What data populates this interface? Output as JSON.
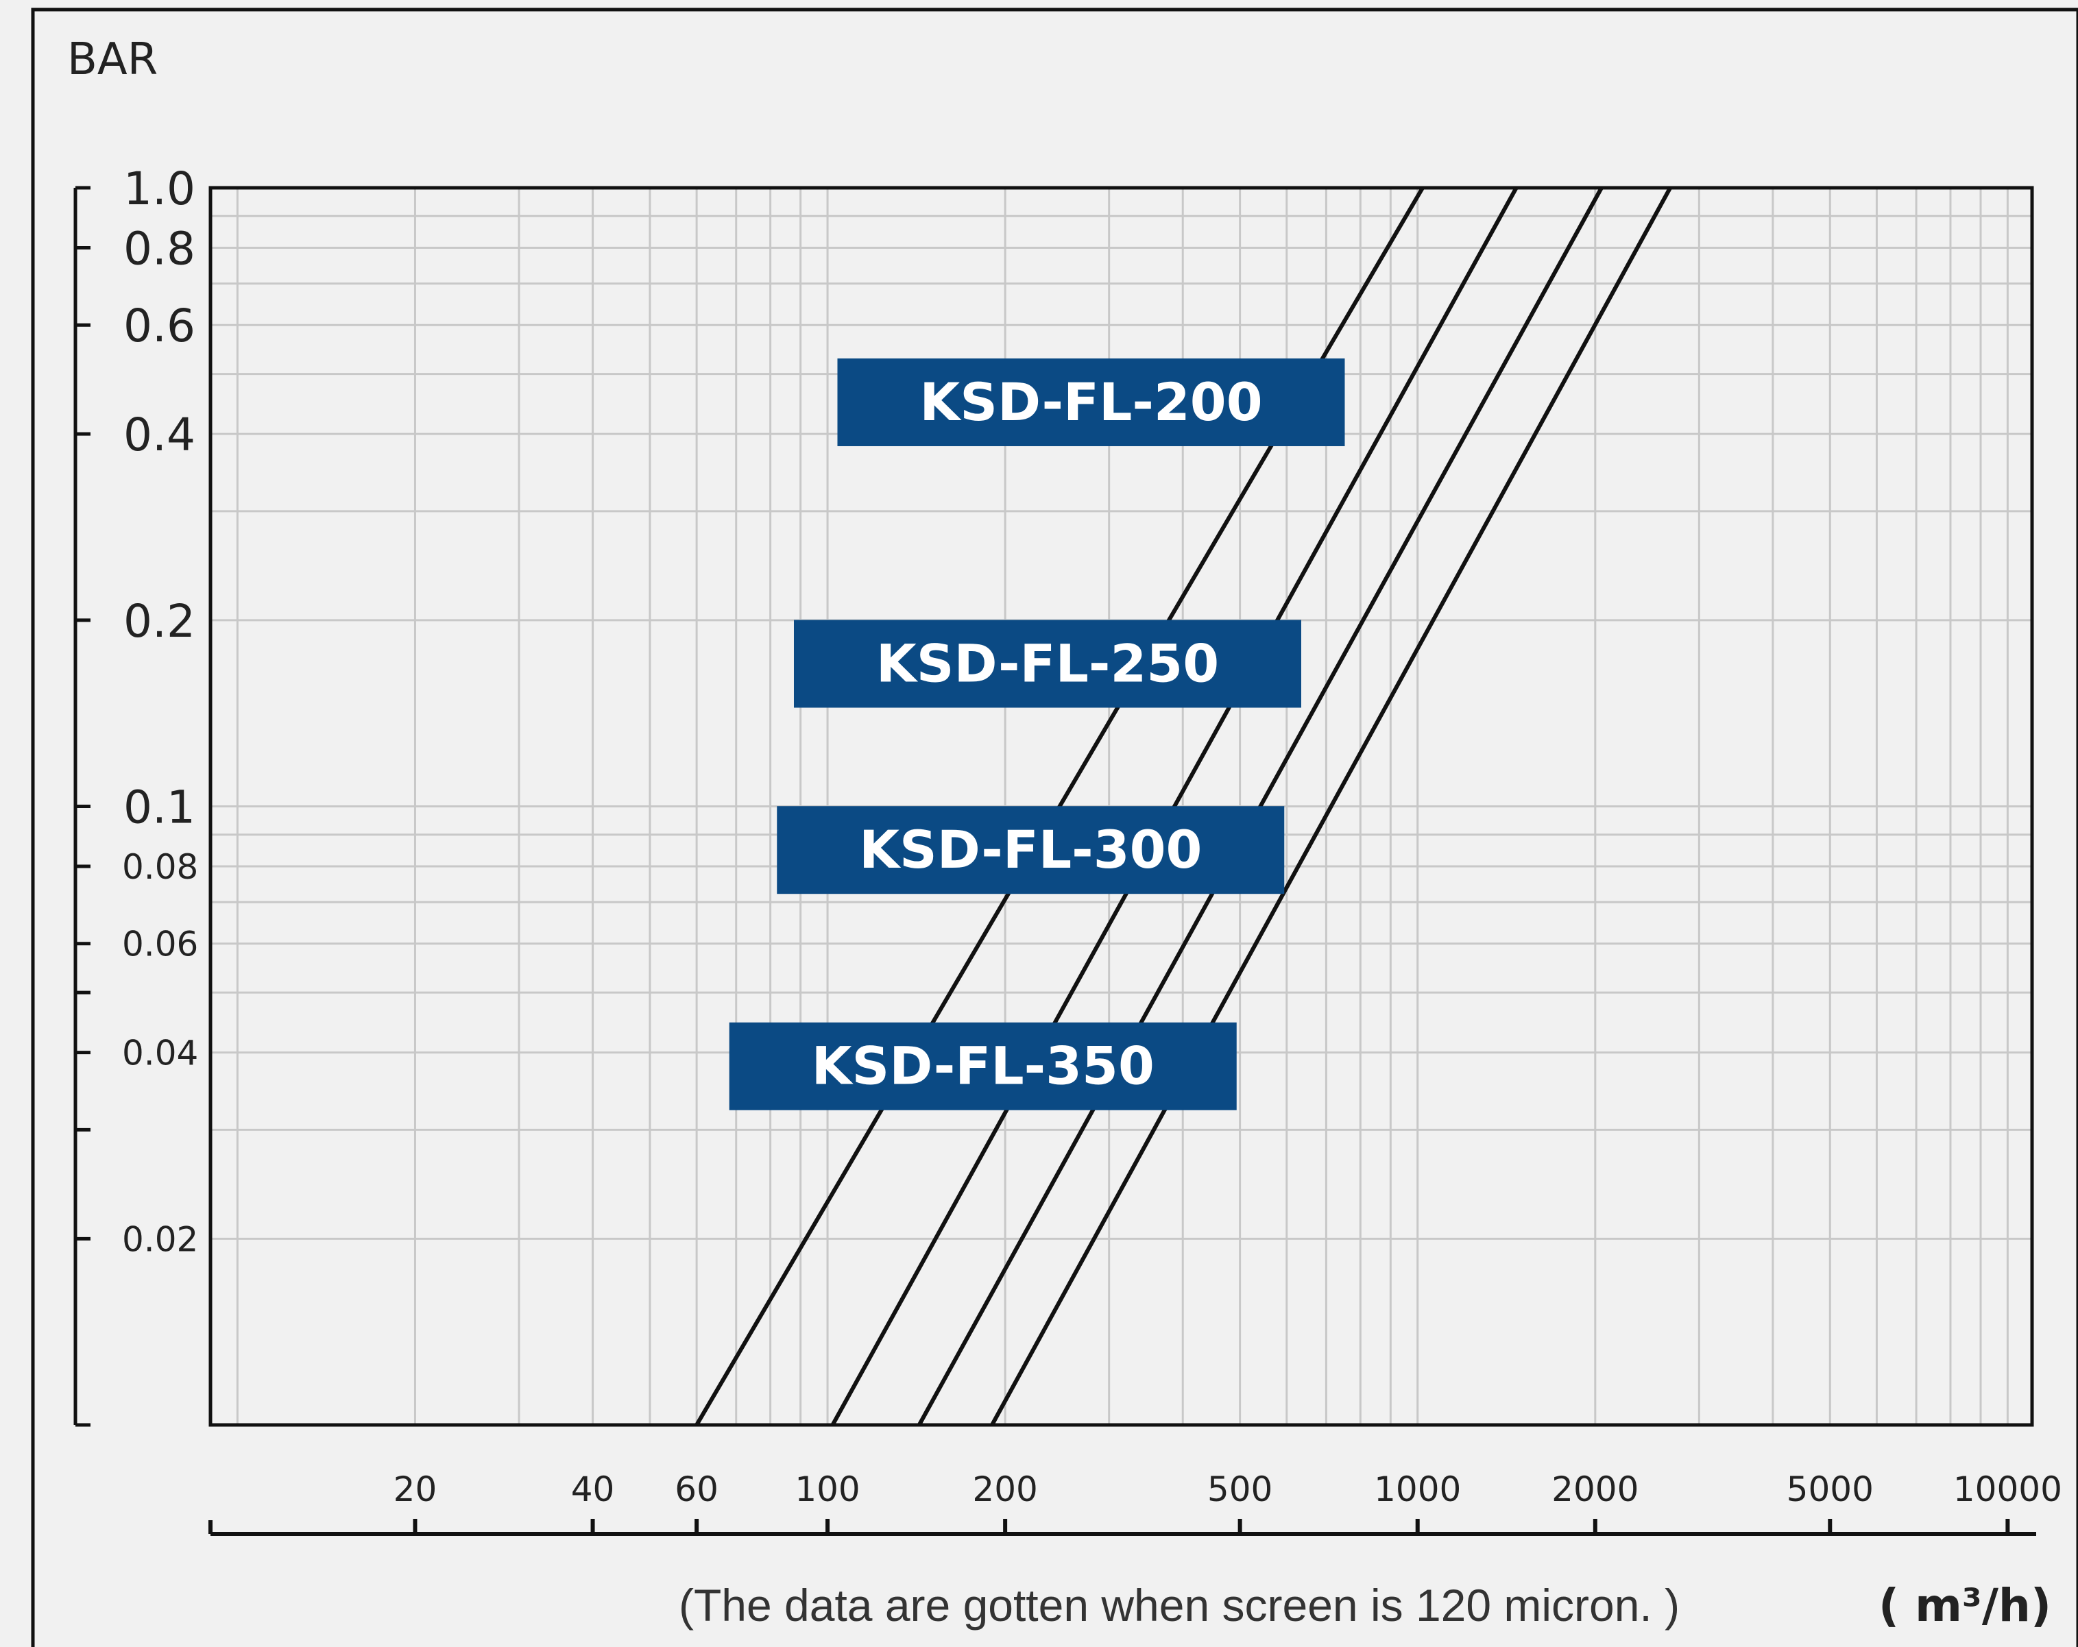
{
  "chart_data": {
    "type": "line",
    "title": "",
    "ylabel": "BAR",
    "xlabel": "( m³/h)",
    "note": "(The data are gotten when screen is 120 micron. )",
    "x_scale": "log",
    "y_scale": "log",
    "xlim": [
      9,
      11000
    ],
    "ylim": [
      0.01,
      1.0
    ],
    "grid": true,
    "y_ticks": [
      {
        "value": 1.0,
        "label": "1.0"
      },
      {
        "value": 0.8,
        "label": "0.8"
      },
      {
        "value": 0.6,
        "label": "0.6"
      },
      {
        "value": 0.4,
        "label": "0.4"
      },
      {
        "value": 0.2,
        "label": "0.2"
      },
      {
        "value": 0.1,
        "label": "0.1"
      },
      {
        "value": 0.08,
        "label": "0.08"
      },
      {
        "value": 0.06,
        "label": "0.06"
      },
      {
        "value": 0.04,
        "label": "0.04"
      },
      {
        "value": 0.02,
        "label": "0.02"
      }
    ],
    "y_minor_ticks": [
      0.05,
      0.03
    ],
    "x_ticks": [
      {
        "value": 20,
        "label": "20"
      },
      {
        "value": 40,
        "label": "40"
      },
      {
        "value": 60,
        "label": "60"
      },
      {
        "value": 100,
        "label": "100"
      },
      {
        "value": 200,
        "label": "200"
      },
      {
        "value": 500,
        "label": "500"
      },
      {
        "value": 1000,
        "label": "1000"
      },
      {
        "value": 2000,
        "label": "2000"
      },
      {
        "value": 5000,
        "label": "5000"
      },
      {
        "value": 10000,
        "label": "10000"
      }
    ],
    "series": [
      {
        "name": "KSD-FL-200",
        "label_at_y": 0.45,
        "x": [
          60,
          1020
        ],
        "y": [
          0.01,
          1.0
        ]
      },
      {
        "name": "KSD-FL-250",
        "label_at_y": 0.17,
        "x": [
          102,
          1470
        ],
        "y": [
          0.01,
          1.0
        ]
      },
      {
        "name": "KSD-FL-300",
        "label_at_y": 0.085,
        "x": [
          143,
          2050
        ],
        "y": [
          0.01,
          1.0
        ]
      },
      {
        "name": "KSD-FL-350",
        "label_at_y": 0.038,
        "x": [
          190,
          2680
        ],
        "y": [
          0.01,
          1.0
        ]
      }
    ],
    "colors": {
      "line": "#111111",
      "badge": "#0b4a84",
      "grid": "#c8c8c8",
      "frame": "#111111"
    }
  }
}
